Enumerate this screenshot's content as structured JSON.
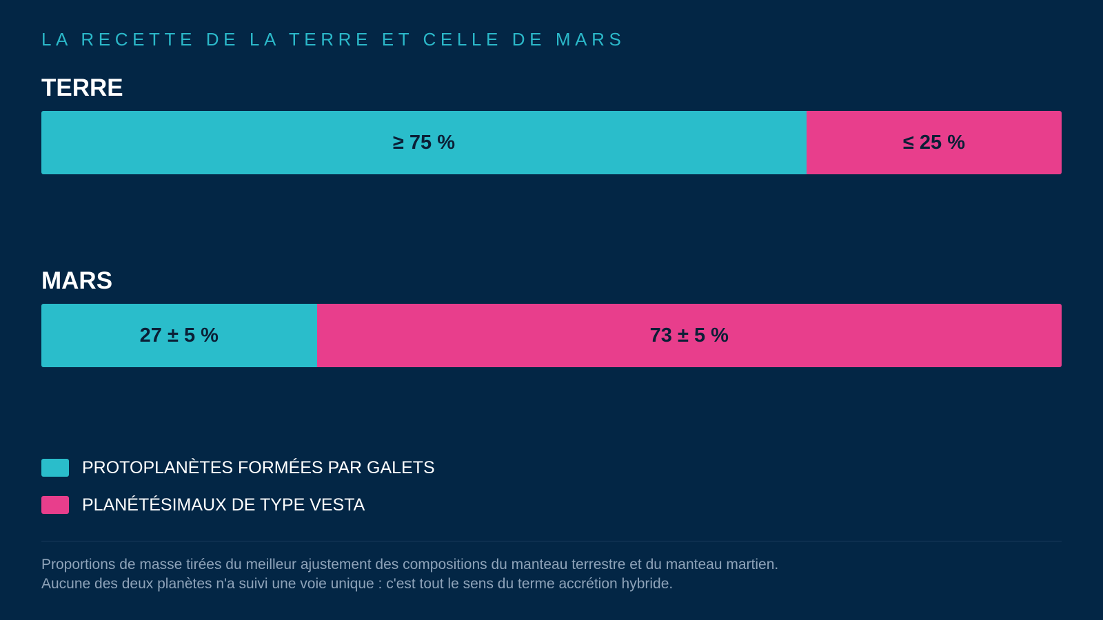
{
  "kicker": "LA RECETTE DE LA TERRE ET CELLE DE MARS",
  "colors": {
    "background": "#032645",
    "pebble": "#2abdcb",
    "vesta": "#e83e8c",
    "kicker": "#2bb8c9"
  },
  "legend": [
    {
      "label": "PROTOPLANÈTES FORMÉES PAR GALETS",
      "color": "#2abdcb"
    },
    {
      "label": "PLANÉTÉSIMAUX DE TYPE VESTA",
      "color": "#e83e8c"
    }
  ],
  "note": {
    "line1": "Proportions de masse tirées du meilleur ajustement des compositions du manteau terrestre et du manteau martien.",
    "line2": "Aucune des deux planètes n'a suivi une voie unique : c'est tout le sens du terme accrétion hybride."
  },
  "chart_data": {
    "type": "bar",
    "orientation": "horizontal",
    "stacked": true,
    "categories": [
      "TERRE",
      "MARS"
    ],
    "series": [
      {
        "name": "PROTOPLANÈTES FORMÉES PAR GALETS",
        "values": [
          75,
          27
        ],
        "labels": [
          "≥ 75 %",
          "27 ± 5 %"
        ],
        "color": "#2abdcb"
      },
      {
        "name": "PLANÉTÉSIMAUX DE TYPE VESTA",
        "values": [
          25,
          73
        ],
        "labels": [
          "≤ 25 %",
          "73 ± 5 %"
        ],
        "color": "#e83e8c"
      }
    ],
    "xlim": [
      0,
      100
    ],
    "grid": false,
    "legend_position": "bottom-left"
  }
}
